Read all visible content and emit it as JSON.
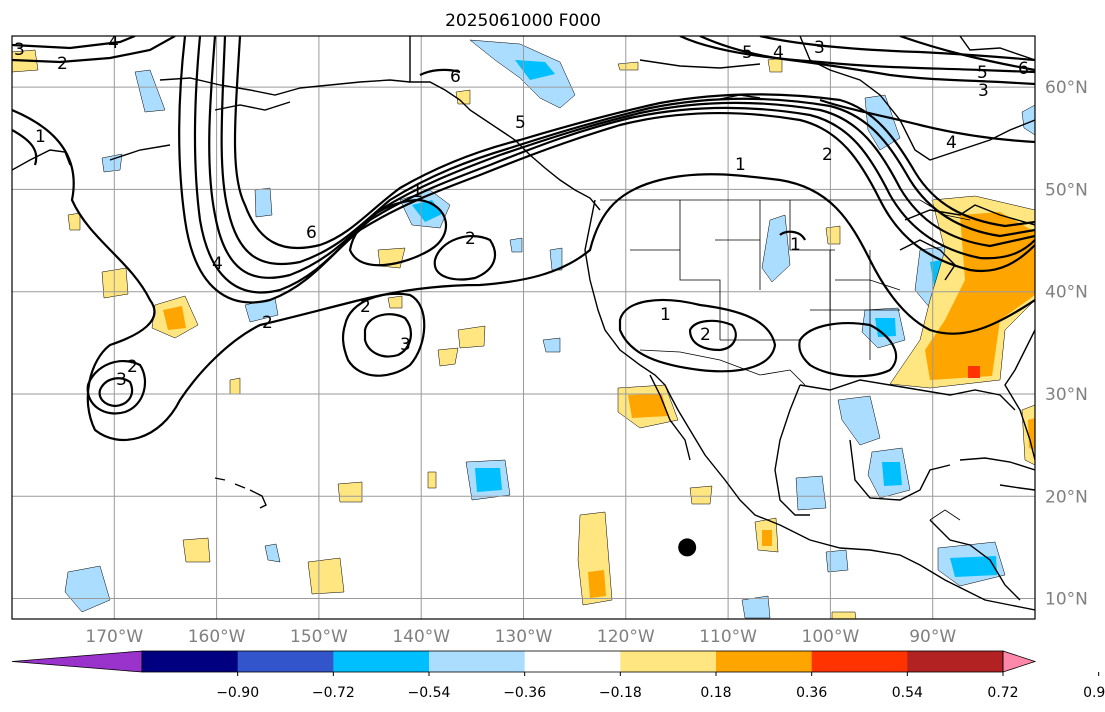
{
  "title": "2025061000 F000",
  "longitude_labels": [
    "170°W",
    "160°W",
    "150°W",
    "140°W",
    "130°W",
    "120°W",
    "110°W",
    "100°W",
    "90°W"
  ],
  "latitude_labels": [
    "60°N",
    "50°N",
    "40°N",
    "30°N",
    "20°N",
    "10°N"
  ],
  "colorbar": {
    "tick_labels": [
      "−0.90",
      "−0.72",
      "−0.54",
      "−0.36",
      "−0.18",
      "0.18",
      "0.36",
      "0.54",
      "0.72",
      "0.90"
    ],
    "colors": [
      "#9933cc",
      "#000080",
      "#3355cc",
      "#00bfff",
      "#aaddff",
      "#ffffff",
      "#ffe680",
      "#ffa500",
      "#ff3300",
      "#b22222",
      "#ff88aa"
    ]
  },
  "contour_labels": [
    "1",
    "2",
    "3",
    "4",
    "5",
    "6"
  ],
  "shading_colors": {
    "light_blue": "#aaddff",
    "blue": "#00bfff",
    "yellow": "#ffe680",
    "orange": "#ffa500",
    "red": "#ff3300"
  },
  "map": {
    "lon_range": [
      -180,
      -80
    ],
    "lat_range": [
      8,
      65
    ],
    "marker": {
      "lon": -114,
      "lat": 15
    }
  }
}
